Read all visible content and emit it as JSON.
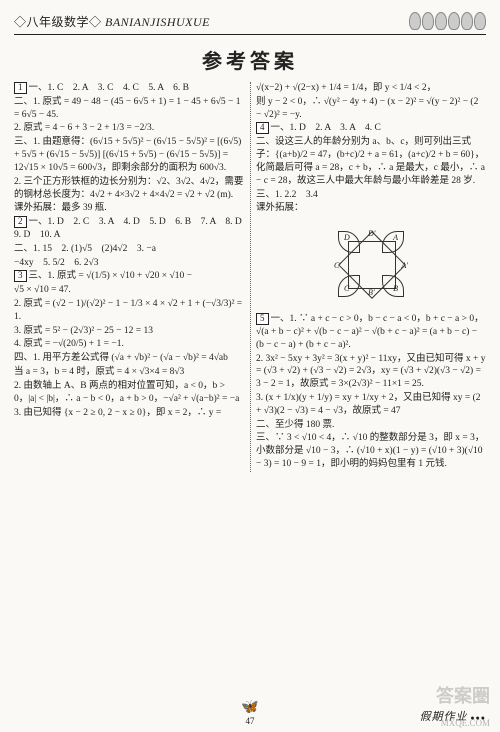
{
  "header": {
    "grade": "◇八年级数学◇",
    "pinyin": "BANIANJISHUXUE"
  },
  "title": "参考答案",
  "left_lines": [
    {
      "box": "1",
      "t": "一、1. C　2. A　3. C　4. C　5. A　6. B"
    },
    {
      "t": "二、1. 原式 = 49 − 48 − (45 − 6√5 + 1) = 1 − 45 + 6√5 − 1 = 6√5 − 45."
    },
    {
      "t": "2. 原式 = 4 − 6 + 3 − 2 + 1/3 = −2/3."
    },
    {
      "t": "三、1. 由题意得：(6√15 + 5√5)² − (6√15 − 5√5)² = [(6√5) + 5√5 + (6√15 − 5√5)] [(6√15 + 5√5) − (6√15 − 5√5)] = 12√15 × 10√5 = 600√3，即剩余部分的面积为 600√3."
    },
    {
      "t": "2. 三个正方形铁框的边长分别为：√2、3√2、4√2，需要的钢材总长度为：4√2 + 4×3√2 + 4×4√2 = √2 + √2 (m)."
    },
    {
      "t": "课外拓展：最多 39 瓶."
    },
    {
      "box": "2",
      "t": "一、1. D　2. C　3. A　4. D　5. D　6. B　7. A　8. D　9. D　10. A"
    },
    {
      "t": "二、1. 15　2. (1)√5　(2)4√2　3. −a"
    },
    {
      "t": "−4xy　5. 5/2　6. 2√3"
    },
    {
      "box": "3",
      "t": "三、1. 原式 = √(1/5) × √10 + √20 × √10 −"
    },
    {
      "t": "√5 × √10 = 47."
    },
    {
      "t": "2. 原式 = (√2 − 1)/(√2)² − 1 − 1/3 × 4 × √2 + 1 + (−√3/3)² = 1."
    },
    {
      "t": "3. 原式 = 5² − (2√3)² − 25 − 12 = 13"
    },
    {
      "t": "4. 原式 = −√(20/5) + 1 = −1."
    },
    {
      "t": "四、1. 用平方差公式得 (√a + √b)² − (√a − √b)² = 4√ab"
    },
    {
      "t": "当 a = 3，b = 4 时，原式 = 4 × √3×4 = 8√3"
    },
    {
      "t": "2. 由数轴上 A、B 两点的相对位置可知，a < 0，b > 0，|a| < |b|，∴ a − b < 0，a + b > 0，−√a² + √(a−b)² = −a"
    },
    {
      "t": "3. 由已知得 {x − 2 ≥ 0, 2 − x ≥ 0}，即 x = 2，∴ y ="
    }
  ],
  "right_lines": [
    {
      "t": "√(x−2) + √(2−x) + 1/4 = 1/4，即 y < 1/4 < 2，"
    },
    {
      "t": "则 y − 2 < 0，∴ √(y² − 4y + 4) − (x − 2)² = √(y − 2)² − (2 − √2)² = −y."
    },
    {
      "box": "4",
      "t": "一、1. D　2. A　3. A　4. C"
    },
    {
      "t": "二、设这三人的年龄分别为 a、b、c，则可列出三式子：{(a+b)/2 = 47，(b+c)/2 + a = 61，(a+c)/2 + b = 60}，化简最后可得 a = 28，c + b，∴ a 是最大，c 最小，∴ a − c = 28，故这三人中最大年龄与最小年龄差是 28 岁."
    },
    {
      "t": "三、1. 2.2　3.4"
    },
    {
      "t": "课外拓展："
    },
    {
      "diagram": true
    },
    {
      "box": "5",
      "t": "一、1. ∵ a + c − c > 0，b − c − a < 0，b + c − a > 0，√(a + b − c)² + √(b − c − a)² − √(b + c − a)² = (a + b − c) − (b − c − a) + (b + c − a)²."
    },
    {
      "t": "2. 3x² − 5xy + 3y² = 3(x + y)² − 11xy，又由已知可得 x + y = (√3 + √2) + (√3 − √2) = 2√3，xy = (√3 + √2)(√3 − √2) = 3 − 2 = 1，故原式 = 3×(2√3)² − 11×1 = 25."
    },
    {
      "t": "3. (x + 1/x)(y + 1/y) = xy + 1/xy + 2，又由已知得 xy = (2 + √3)(2 − √3) = 4 − √3，故原式 = 47"
    },
    {
      "t": "二、至少得 180 票."
    },
    {
      "t": "三、∵ 3 < √10 < 4，∴ √10 的整数部分是 3，即 x = 3，小数部分是 √10 − 3，∴ (√10 + x)(1 − y) = (√10 + 3)(√10 − 3) = 10 − 9 = 1，即小明的妈妈包里有 1 元钱."
    }
  ],
  "diagram_labels": {
    "A": "A",
    "B": "B",
    "C": "C",
    "D": "D",
    "Ap": "A'",
    "Bp": "B'",
    "Cp": "C'",
    "Dp": "D'"
  },
  "footer": {
    "page_num": "47",
    "right_text": "假期作业"
  },
  "watermark": {
    "main": "答案圈",
    "sub": "MXQE.COM"
  }
}
